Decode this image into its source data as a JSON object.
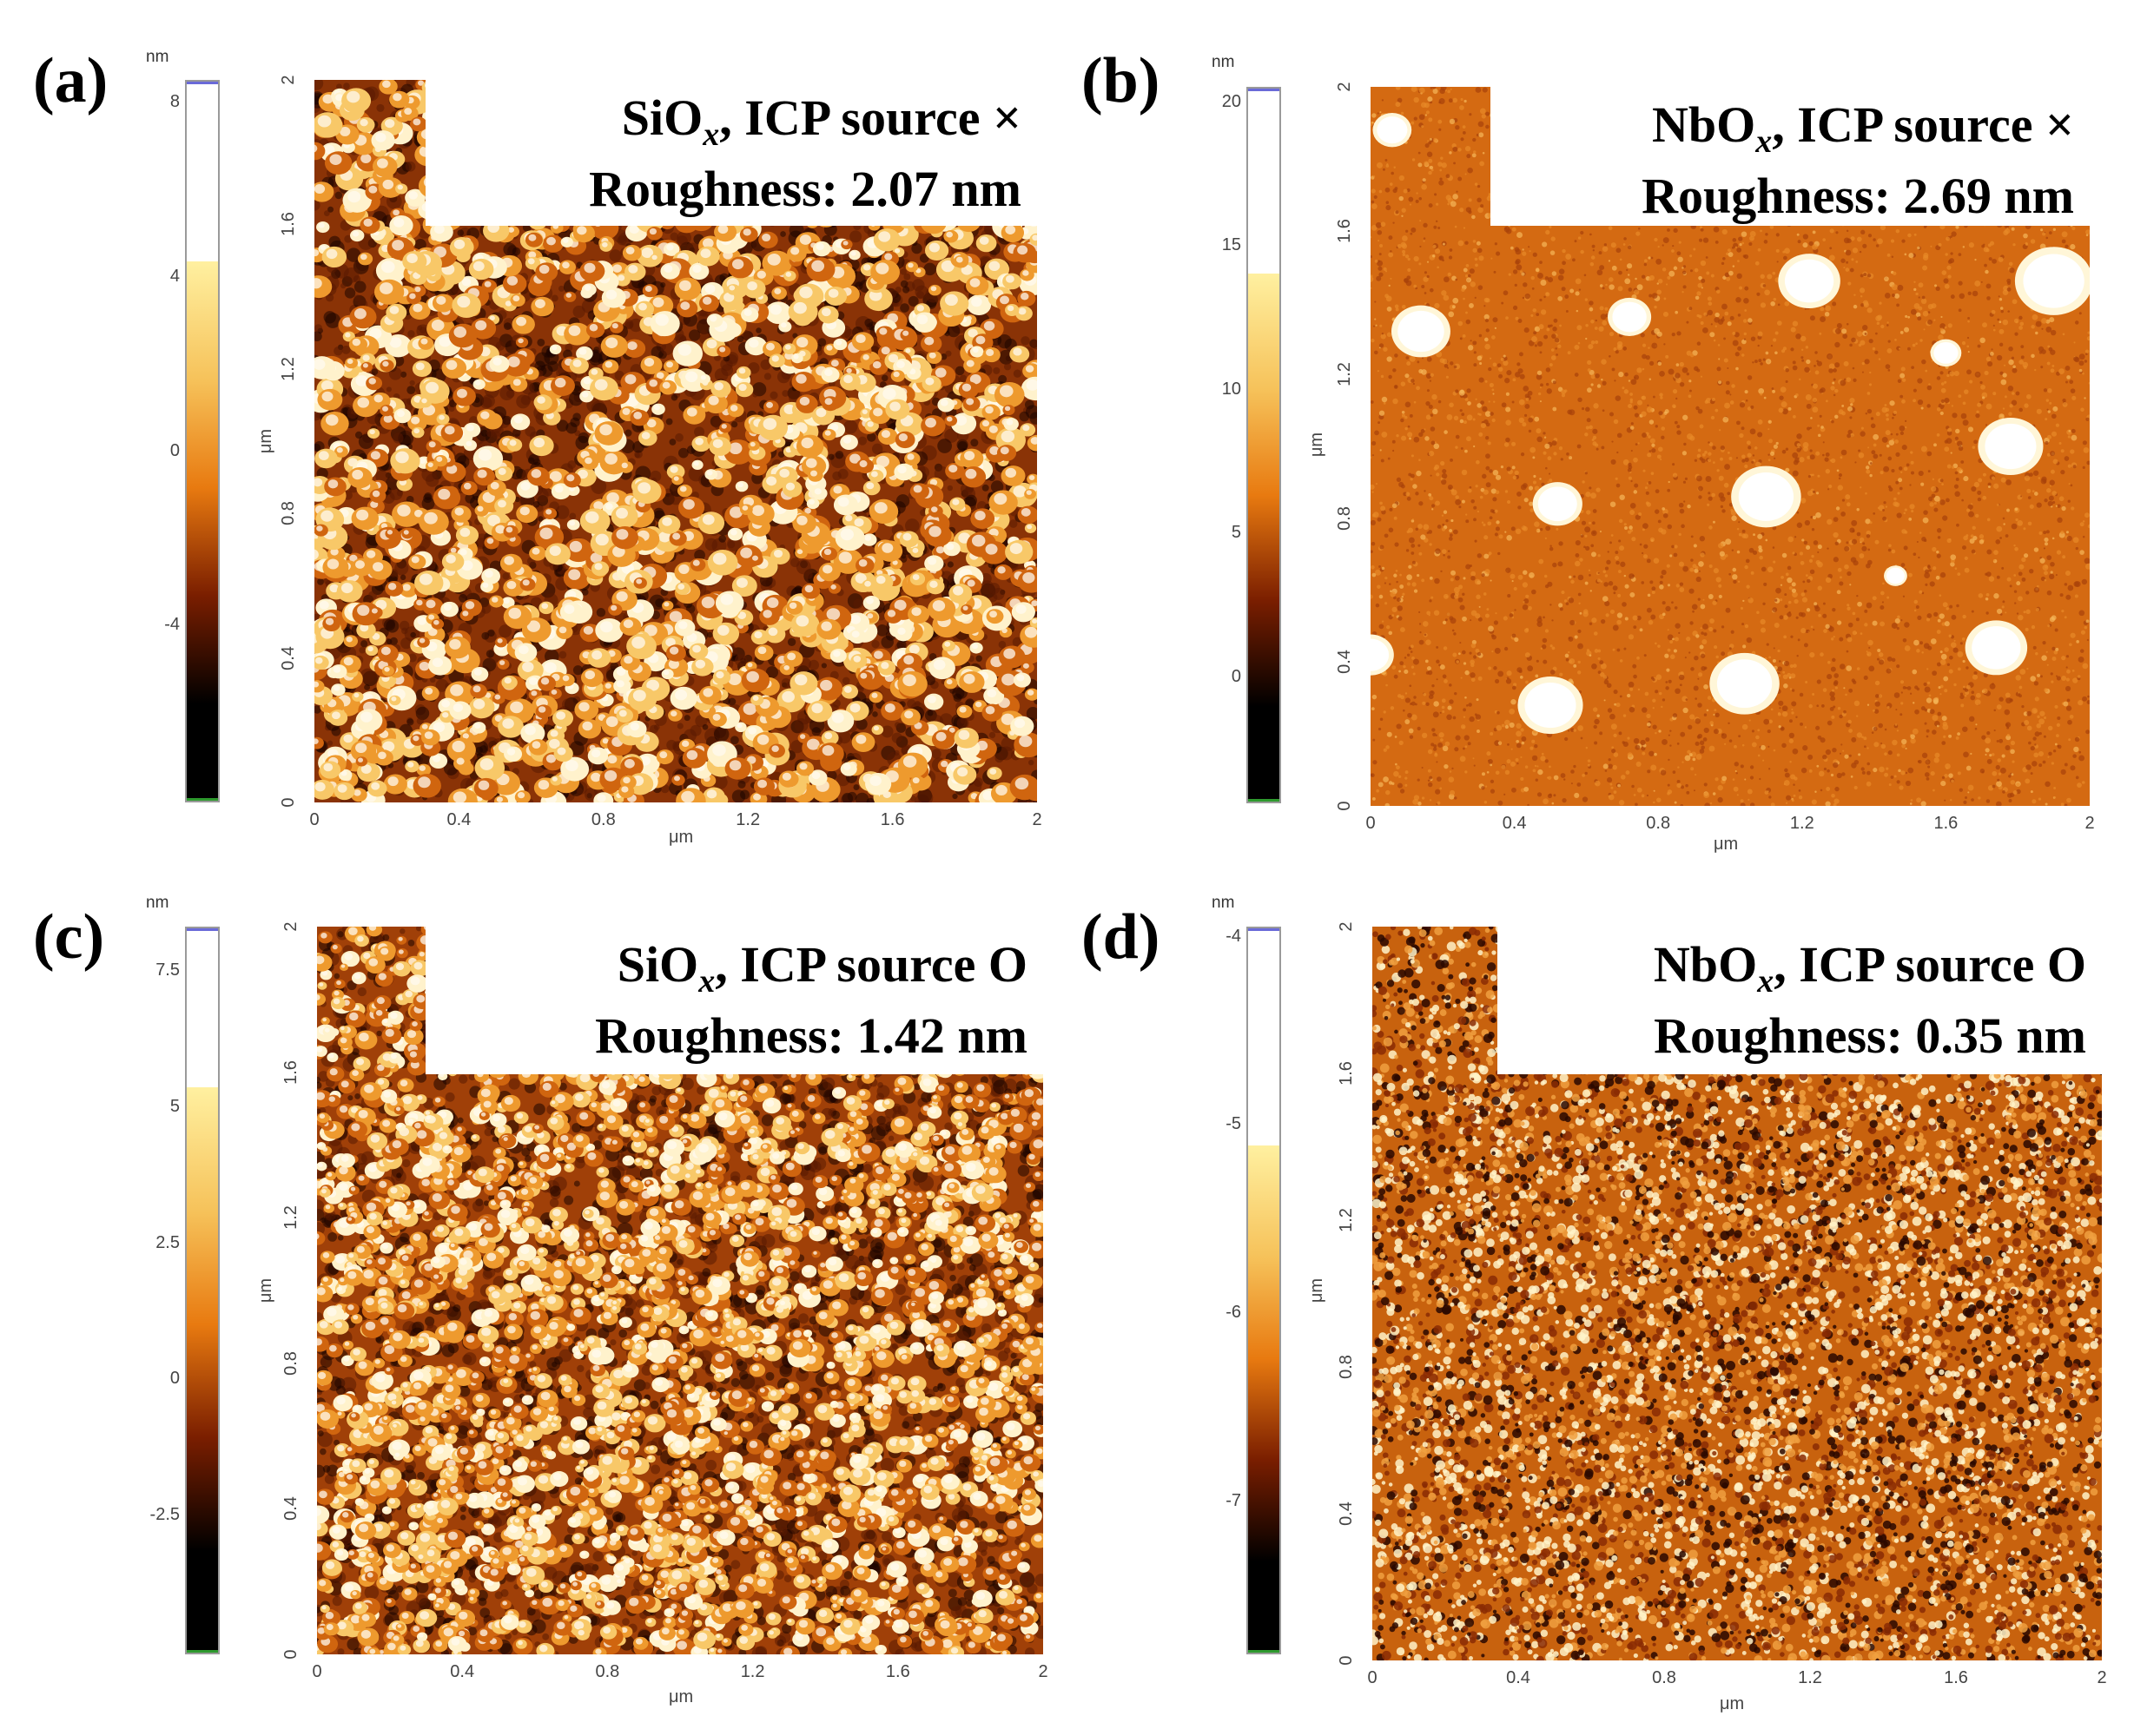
{
  "figure": {
    "panels": [
      {
        "id": "a",
        "label": "(a)",
        "colorbar_unit": "nm",
        "colorbar_ticks": [
          "8",
          "4",
          "0",
          "-4"
        ],
        "colorbar_tick_values": [
          8,
          4,
          0,
          -4
        ],
        "colorbar_range": [
          -8,
          8.5
        ],
        "material_prefix": "SiO",
        "material_sub": "x",
        "material_suffix": ", ICP source ×",
        "roughness_text": "Roughness: 2.07 nm",
        "roughness_nm": 2.07,
        "axis_unit": "μm",
        "x_ticks": [
          "0",
          "0.4",
          "0.8",
          "1.2",
          "1.6",
          "2"
        ],
        "y_ticks": [
          "0",
          "0.4",
          "0.8",
          "1.2",
          "1.6",
          "2"
        ],
        "texture": "grains-coarse"
      },
      {
        "id": "b",
        "label": "(b)",
        "colorbar_unit": "nm",
        "colorbar_ticks": [
          "20",
          "15",
          "10",
          "5",
          "0"
        ],
        "colorbar_tick_values": [
          20,
          15,
          10,
          5,
          0
        ],
        "colorbar_range": [
          -4.3,
          20.5
        ],
        "material_prefix": "NbO",
        "material_sub": "x",
        "material_suffix": ", ICP source ×",
        "roughness_text": "Roughness: 2.69 nm",
        "roughness_nm": 2.69,
        "axis_unit": "μm",
        "x_ticks": [
          "0",
          "0.4",
          "0.8",
          "1.2",
          "1.6",
          "2"
        ],
        "y_ticks": [
          "0",
          "0.4",
          "0.8",
          "1.2",
          "1.6",
          "2"
        ],
        "texture": "flat-with-particles"
      },
      {
        "id": "c",
        "label": "(c)",
        "colorbar_unit": "nm",
        "colorbar_ticks": [
          "7.5",
          "5",
          "2.5",
          "0",
          "-2.5"
        ],
        "colorbar_tick_values": [
          7.5,
          5,
          2.5,
          0,
          -2.5
        ],
        "colorbar_range": [
          -5,
          8.3
        ],
        "material_prefix": "SiO",
        "material_sub": "x",
        "material_suffix": ", ICP source O",
        "roughness_text": "Roughness: 1.42 nm",
        "roughness_nm": 1.42,
        "axis_unit": "μm",
        "x_ticks": [
          "0",
          "0.4",
          "0.8",
          "1.2",
          "1.6",
          "2"
        ],
        "y_ticks": [
          "0",
          "0.4",
          "0.8",
          "1.2",
          "1.6",
          "2"
        ],
        "texture": "grains-fine"
      },
      {
        "id": "d",
        "label": "(d)",
        "colorbar_unit": "nm",
        "colorbar_ticks": [
          "-4",
          "-5",
          "-6",
          "-7"
        ],
        "colorbar_tick_values": [
          -4,
          -5,
          -6,
          -7
        ],
        "colorbar_range": [
          -7.8,
          -3.95
        ],
        "material_prefix": "NbO",
        "material_sub": "x",
        "material_suffix": ", ICP source O",
        "roughness_text": "Roughness: 0.35 nm",
        "roughness_nm": 0.35,
        "axis_unit": "μm",
        "x_ticks": [
          "0",
          "0.4",
          "0.8",
          "1.2",
          "1.6",
          "2"
        ],
        "y_ticks": [
          "0",
          "0.4",
          "0.8",
          "1.2",
          "1.6",
          "2"
        ],
        "texture": "speckle"
      }
    ]
  },
  "colors": {
    "cmap_dark": "#000000",
    "cmap_brown": "#7a1e00",
    "cmap_orange": "#e87a10",
    "cmap_yellow": "#fff0a0",
    "cmap_white": "#ffffff"
  }
}
